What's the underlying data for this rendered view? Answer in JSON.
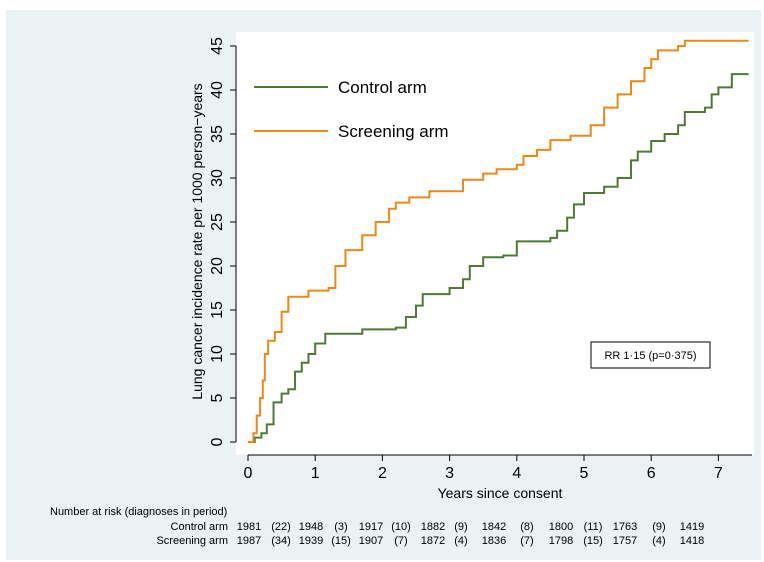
{
  "chart_data": {
    "type": "line",
    "xlabel": "Years since consent",
    "ylabel": "Lung cancer incidence rate per 1000 person−years",
    "xlim": [
      0,
      7.5
    ],
    "ylim": [
      0,
      45
    ],
    "x_ticks": [
      "0",
      "1",
      "2",
      "3",
      "4",
      "5",
      "6",
      "7"
    ],
    "y_ticks": [
      "0",
      "5",
      "10",
      "15",
      "20",
      "25",
      "30",
      "35",
      "40",
      "45"
    ],
    "legend_position": "top-left",
    "annotation": "RR 1·15 (p=0·375)",
    "series": [
      {
        "name": "Control arm",
        "color": "#4e7a36",
        "points": [
          [
            0,
            0
          ],
          [
            0.1,
            0.5
          ],
          [
            0.2,
            1.0
          ],
          [
            0.28,
            2.0
          ],
          [
            0.38,
            4.5
          ],
          [
            0.5,
            5.5
          ],
          [
            0.6,
            6.0
          ],
          [
            0.7,
            8.0
          ],
          [
            0.8,
            9.0
          ],
          [
            0.9,
            10.0
          ],
          [
            1.0,
            11.2
          ],
          [
            1.15,
            12.3
          ],
          [
            1.6,
            12.3
          ],
          [
            1.7,
            12.8
          ],
          [
            2.2,
            13.0
          ],
          [
            2.35,
            14.2
          ],
          [
            2.5,
            15.5
          ],
          [
            2.6,
            16.8
          ],
          [
            3.0,
            17.5
          ],
          [
            3.2,
            18.5
          ],
          [
            3.3,
            20.0
          ],
          [
            3.5,
            21.0
          ],
          [
            3.8,
            21.2
          ],
          [
            4.0,
            22.8
          ],
          [
            4.5,
            23.2
          ],
          [
            4.6,
            24.0
          ],
          [
            4.75,
            25.5
          ],
          [
            4.85,
            27.0
          ],
          [
            5.0,
            28.3
          ],
          [
            5.3,
            29.0
          ],
          [
            5.5,
            30.0
          ],
          [
            5.7,
            32.0
          ],
          [
            5.8,
            33.0
          ],
          [
            6.0,
            34.2
          ],
          [
            6.2,
            35.0
          ],
          [
            6.4,
            36.0
          ],
          [
            6.5,
            37.5
          ],
          [
            6.8,
            38.0
          ],
          [
            6.9,
            39.5
          ],
          [
            7.0,
            40.3
          ],
          [
            7.2,
            41.8
          ],
          [
            7.45,
            41.8
          ]
        ]
      },
      {
        "name": "Screening arm",
        "color": "#e8891a",
        "points": [
          [
            0,
            0
          ],
          [
            0.08,
            1.0
          ],
          [
            0.13,
            3.0
          ],
          [
            0.18,
            5.0
          ],
          [
            0.22,
            7.0
          ],
          [
            0.25,
            10.0
          ],
          [
            0.3,
            11.5
          ],
          [
            0.4,
            12.5
          ],
          [
            0.5,
            14.8
          ],
          [
            0.6,
            16.5
          ],
          [
            0.9,
            17.2
          ],
          [
            1.2,
            17.5
          ],
          [
            1.3,
            20.0
          ],
          [
            1.45,
            21.8
          ],
          [
            1.7,
            23.5
          ],
          [
            1.9,
            25.0
          ],
          [
            2.1,
            26.5
          ],
          [
            2.2,
            27.2
          ],
          [
            2.4,
            27.8
          ],
          [
            2.7,
            28.5
          ],
          [
            3.2,
            29.8
          ],
          [
            3.5,
            30.5
          ],
          [
            3.7,
            31.0
          ],
          [
            4.0,
            31.5
          ],
          [
            4.1,
            32.5
          ],
          [
            4.3,
            33.2
          ],
          [
            4.5,
            34.3
          ],
          [
            4.8,
            34.8
          ],
          [
            5.1,
            36.0
          ],
          [
            5.3,
            38.0
          ],
          [
            5.5,
            39.5
          ],
          [
            5.7,
            41.0
          ],
          [
            5.9,
            42.5
          ],
          [
            6.0,
            43.5
          ],
          [
            6.1,
            44.5
          ],
          [
            6.4,
            45.0
          ],
          [
            6.5,
            45.6
          ],
          [
            7.45,
            45.6
          ]
        ]
      }
    ],
    "risk_table": {
      "header": "Number at risk (diagnoses in period)",
      "rows": [
        {
          "label": "Control arm",
          "values": [
            "1981",
            "(22)",
            "1948",
            "(3)",
            "1917",
            "(10)",
            "1882",
            "(9)",
            "1842",
            "(8)",
            "1800",
            "(11)",
            "1763",
            "(9)",
            "1419"
          ]
        },
        {
          "label": "Screening arm",
          "values": [
            "1987",
            "(34)",
            "1939",
            "(15)",
            "1907",
            "(7)",
            "1872",
            "(4)",
            "1836",
            "(7)",
            "1798",
            "(15)",
            "1757",
            "(4)",
            "1418"
          ]
        }
      ]
    }
  }
}
